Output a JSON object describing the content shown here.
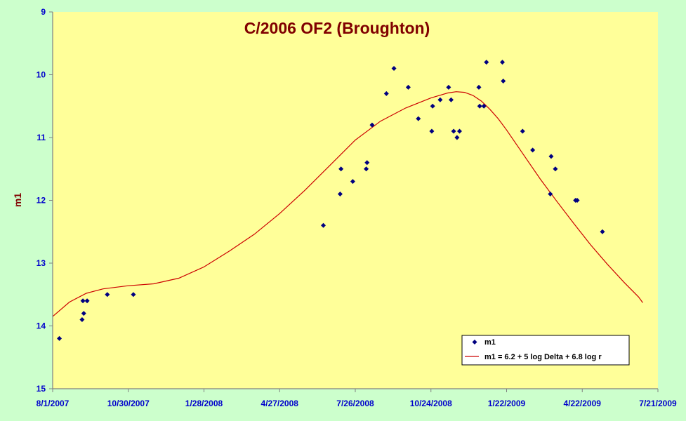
{
  "chart_data": {
    "type": "scatter",
    "title": "C/2006 OF2 (Broughton)",
    "ylabel": "m1",
    "xlabel": "",
    "y_inverted": true,
    "ylim": [
      9,
      15
    ],
    "y_ticks": [
      "9",
      "10",
      "11",
      "12",
      "13",
      "14",
      "15"
    ],
    "x_axis": "date",
    "x_ticks": [
      "8/1/2007",
      "10/30/2007",
      "1/28/2008",
      "4/27/2008",
      "7/26/2008",
      "10/24/2008",
      "1/22/2009",
      "4/22/2009",
      "7/21/2009"
    ],
    "grid": false,
    "legend_position": "bottom-right",
    "colors": {
      "plot_background": "#ffff99",
      "outer_background": "#ccffcc",
      "title": "#800000",
      "ylabel": "#800000",
      "tick_labels": "#0000cc",
      "points": "#000080",
      "curve": "#cc0000",
      "axis": "#808080"
    },
    "series": [
      {
        "name": "m1",
        "kind": "points",
        "marker": "diamond",
        "points": [
          {
            "x": "2007-08-09",
            "y": 14.2
          },
          {
            "x": "2007-09-05",
            "y": 13.9
          },
          {
            "x": "2007-09-06",
            "y": 13.6
          },
          {
            "x": "2007-09-07",
            "y": 13.8
          },
          {
            "x": "2007-09-11",
            "y": 13.6
          },
          {
            "x": "2007-10-05",
            "y": 13.5
          },
          {
            "x": "2007-11-05",
            "y": 13.5
          },
          {
            "x": "2008-06-18",
            "y": 12.4
          },
          {
            "x": "2008-07-08",
            "y": 11.9
          },
          {
            "x": "2008-07-09",
            "y": 11.5
          },
          {
            "x": "2008-07-23",
            "y": 11.7
          },
          {
            "x": "2008-08-08",
            "y": 11.5
          },
          {
            "x": "2008-08-09",
            "y": 11.4
          },
          {
            "x": "2008-08-15",
            "y": 10.8
          },
          {
            "x": "2008-09-01",
            "y": 10.3
          },
          {
            "x": "2008-09-10",
            "y": 9.9
          },
          {
            "x": "2008-09-27",
            "y": 10.2
          },
          {
            "x": "2008-10-09",
            "y": 10.7
          },
          {
            "x": "2008-10-25",
            "y": 10.9
          },
          {
            "x": "2008-10-26",
            "y": 10.5
          },
          {
            "x": "2008-11-04",
            "y": 10.4
          },
          {
            "x": "2008-11-14",
            "y": 10.2
          },
          {
            "x": "2008-11-17",
            "y": 10.4
          },
          {
            "x": "2008-11-20",
            "y": 10.9
          },
          {
            "x": "2008-11-24",
            "y": 11.0
          },
          {
            "x": "2008-11-27",
            "y": 10.9
          },
          {
            "x": "2008-12-20",
            "y": 10.2
          },
          {
            "x": "2008-12-21",
            "y": 10.5
          },
          {
            "x": "2008-12-26",
            "y": 10.5
          },
          {
            "x": "2008-12-29",
            "y": 9.8
          },
          {
            "x": "2009-01-17",
            "y": 9.8
          },
          {
            "x": "2009-01-18",
            "y": 10.1
          },
          {
            "x": "2009-02-10",
            "y": 10.9
          },
          {
            "x": "2009-02-22",
            "y": 11.2
          },
          {
            "x": "2009-03-15",
            "y": 11.9
          },
          {
            "x": "2009-03-16",
            "y": 11.3
          },
          {
            "x": "2009-03-21",
            "y": 11.5
          },
          {
            "x": "2009-04-14",
            "y": 12.0
          },
          {
            "x": "2009-04-16",
            "y": 12.0
          },
          {
            "x": "2009-05-16",
            "y": 12.5
          }
        ]
      },
      {
        "name": "m1 = 6.2 + 5 log Delta + 6.8 log r",
        "kind": "line",
        "points": [
          {
            "x": "2007-08-01",
            "y": 13.85
          },
          {
            "x": "2007-08-21",
            "y": 13.62
          },
          {
            "x": "2007-09-10",
            "y": 13.48
          },
          {
            "x": "2007-09-30",
            "y": 13.41
          },
          {
            "x": "2007-10-30",
            "y": 13.36
          },
          {
            "x": "2007-11-29",
            "y": 13.33
          },
          {
            "x": "2007-12-29",
            "y": 13.24
          },
          {
            "x": "2008-01-28",
            "y": 13.06
          },
          {
            "x": "2008-02-27",
            "y": 12.81
          },
          {
            "x": "2008-03-28",
            "y": 12.54
          },
          {
            "x": "2008-04-27",
            "y": 12.21
          },
          {
            "x": "2008-05-27",
            "y": 11.84
          },
          {
            "x": "2008-06-26",
            "y": 11.44
          },
          {
            "x": "2008-07-26",
            "y": 11.04
          },
          {
            "x": "2008-08-25",
            "y": 10.74
          },
          {
            "x": "2008-09-24",
            "y": 10.53
          },
          {
            "x": "2008-10-24",
            "y": 10.37
          },
          {
            "x": "2008-11-13",
            "y": 10.29
          },
          {
            "x": "2008-11-23",
            "y": 10.27
          },
          {
            "x": "2008-12-03",
            "y": 10.28
          },
          {
            "x": "2008-12-13",
            "y": 10.33
          },
          {
            "x": "2008-12-23",
            "y": 10.42
          },
          {
            "x": "2009-01-02",
            "y": 10.55
          },
          {
            "x": "2009-01-12",
            "y": 10.7
          },
          {
            "x": "2009-01-22",
            "y": 10.88
          },
          {
            "x": "2009-02-11",
            "y": 11.27
          },
          {
            "x": "2009-03-03",
            "y": 11.66
          },
          {
            "x": "2009-03-23",
            "y": 12.02
          },
          {
            "x": "2009-04-12",
            "y": 12.37
          },
          {
            "x": "2009-05-02",
            "y": 12.71
          },
          {
            "x": "2009-05-22",
            "y": 13.02
          },
          {
            "x": "2009-06-11",
            "y": 13.31
          },
          {
            "x": "2009-06-28",
            "y": 13.54
          },
          {
            "x": "2009-07-03",
            "y": 13.63
          }
        ]
      }
    ]
  }
}
